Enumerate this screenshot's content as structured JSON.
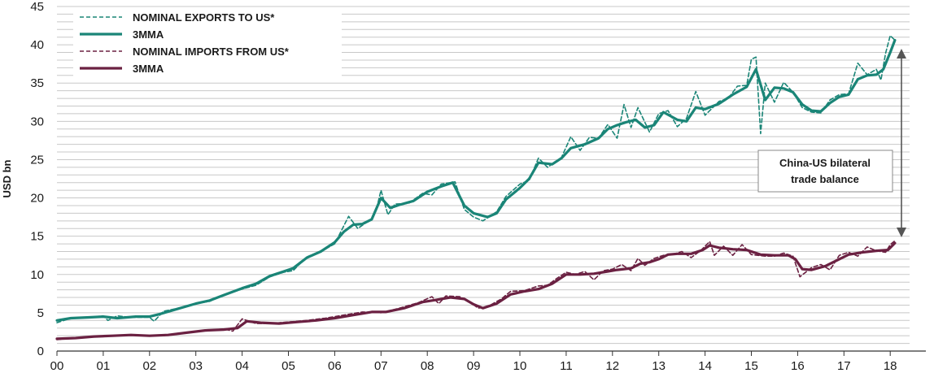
{
  "chart_data": {
    "type": "line",
    "title": "",
    "xlabel": "",
    "ylabel": "USD bn",
    "ylim": [
      0,
      45
    ],
    "xlim": [
      2000,
      2019
    ],
    "yticks": [
      "0",
      "5",
      "10",
      "15",
      "20",
      "25",
      "30",
      "35",
      "40",
      "45"
    ],
    "xticks": [
      "00",
      "01",
      "02",
      "03",
      "04",
      "05",
      "06",
      "07",
      "08",
      "09",
      "10",
      "11",
      "12",
      "13",
      "14",
      "15",
      "16",
      "17",
      "18"
    ],
    "grid": true,
    "legend_position": "top-left",
    "colors": {
      "exports": "#1a8577",
      "imports": "#6b2142",
      "grid": "#c8c8c8",
      "arrow": "#555555"
    },
    "series": [
      {
        "name": "NOMINAL EXPORTS TO US*",
        "style": "dashed",
        "color": "#1a8577",
        "points": [
          [
            2000.0,
            3.7
          ],
          [
            2000.3,
            4.3
          ],
          [
            2000.7,
            4.4
          ],
          [
            2001.0,
            4.6
          ],
          [
            2001.1,
            4.0
          ],
          [
            2001.3,
            4.6
          ],
          [
            2001.6,
            4.4
          ],
          [
            2002.0,
            4.4
          ],
          [
            2002.1,
            3.9
          ],
          [
            2002.3,
            5.2
          ],
          [
            2002.7,
            5.7
          ],
          [
            2003.0,
            6.2
          ],
          [
            2003.3,
            6.5
          ],
          [
            2003.6,
            7.3
          ],
          [
            2004.0,
            8.1
          ],
          [
            2004.3,
            8.6
          ],
          [
            2004.6,
            9.7
          ],
          [
            2004.9,
            10.3
          ],
          [
            2005.1,
            10.5
          ],
          [
            2005.4,
            12.3
          ],
          [
            2005.7,
            13.0
          ],
          [
            2006.0,
            14.0
          ],
          [
            2006.1,
            15.2
          ],
          [
            2006.3,
            17.6
          ],
          [
            2006.5,
            16.0
          ],
          [
            2006.8,
            17.3
          ],
          [
            2006.9,
            18.5
          ],
          [
            2007.0,
            21.0
          ],
          [
            2007.15,
            17.8
          ],
          [
            2007.3,
            19.2
          ],
          [
            2007.6,
            19.3
          ],
          [
            2007.9,
            20.6
          ],
          [
            2008.1,
            20.4
          ],
          [
            2008.3,
            21.8
          ],
          [
            2008.6,
            22.1
          ],
          [
            2008.8,
            18.5
          ],
          [
            2009.0,
            17.5
          ],
          [
            2009.2,
            17.0
          ],
          [
            2009.5,
            18.2
          ],
          [
            2009.7,
            20.2
          ],
          [
            2010.0,
            21.8
          ],
          [
            2010.2,
            22.3
          ],
          [
            2010.4,
            25.2
          ],
          [
            2010.6,
            24.0
          ],
          [
            2010.9,
            25.3
          ],
          [
            2011.1,
            28.0
          ],
          [
            2011.3,
            26.2
          ],
          [
            2011.5,
            27.9
          ],
          [
            2011.7,
            27.8
          ],
          [
            2011.9,
            29.6
          ],
          [
            2012.1,
            27.8
          ],
          [
            2012.25,
            32.2
          ],
          [
            2012.4,
            29.2
          ],
          [
            2012.55,
            31.8
          ],
          [
            2012.8,
            28.6
          ],
          [
            2013.0,
            31.0
          ],
          [
            2013.2,
            31.4
          ],
          [
            2013.4,
            29.3
          ],
          [
            2013.6,
            30.4
          ],
          [
            2013.8,
            33.9
          ],
          [
            2014.0,
            30.8
          ],
          [
            2014.3,
            32.6
          ],
          [
            2014.5,
            33.0
          ],
          [
            2014.7,
            34.6
          ],
          [
            2014.9,
            34.7
          ],
          [
            2015.0,
            38.1
          ],
          [
            2015.1,
            38.4
          ],
          [
            2015.2,
            28.4
          ],
          [
            2015.3,
            35.0
          ],
          [
            2015.5,
            32.5
          ],
          [
            2015.7,
            35.1
          ],
          [
            2015.9,
            33.8
          ],
          [
            2016.1,
            31.8
          ],
          [
            2016.3,
            31.2
          ],
          [
            2016.5,
            31.1
          ],
          [
            2016.7,
            32.8
          ],
          [
            2016.9,
            33.5
          ],
          [
            2017.1,
            33.6
          ],
          [
            2017.3,
            37.6
          ],
          [
            2017.5,
            36.1
          ],
          [
            2017.7,
            36.8
          ],
          [
            2017.8,
            35.4
          ],
          [
            2017.9,
            38.9
          ],
          [
            2018.0,
            41.2
          ],
          [
            2018.1,
            40.6
          ]
        ]
      },
      {
        "name": "3MMA",
        "style": "solid",
        "color": "#1a8577",
        "points": [
          [
            2000.0,
            4.0
          ],
          [
            2000.3,
            4.3
          ],
          [
            2000.7,
            4.4
          ],
          [
            2001.0,
            4.5
          ],
          [
            2001.3,
            4.3
          ],
          [
            2001.7,
            4.5
          ],
          [
            2002.0,
            4.5
          ],
          [
            2002.2,
            4.8
          ],
          [
            2002.6,
            5.5
          ],
          [
            2003.0,
            6.2
          ],
          [
            2003.3,
            6.6
          ],
          [
            2003.6,
            7.3
          ],
          [
            2004.0,
            8.2
          ],
          [
            2004.3,
            8.8
          ],
          [
            2004.6,
            9.8
          ],
          [
            2004.9,
            10.4
          ],
          [
            2005.1,
            10.8
          ],
          [
            2005.4,
            12.2
          ],
          [
            2005.7,
            13.0
          ],
          [
            2006.0,
            14.2
          ],
          [
            2006.2,
            15.6
          ],
          [
            2006.4,
            16.5
          ],
          [
            2006.6,
            16.6
          ],
          [
            2006.8,
            17.2
          ],
          [
            2007.0,
            20.0
          ],
          [
            2007.2,
            18.7
          ],
          [
            2007.4,
            19.1
          ],
          [
            2007.7,
            19.6
          ],
          [
            2008.0,
            20.8
          ],
          [
            2008.3,
            21.5
          ],
          [
            2008.55,
            22.0
          ],
          [
            2008.8,
            19.0
          ],
          [
            2009.0,
            18.0
          ],
          [
            2009.3,
            17.5
          ],
          [
            2009.5,
            18.0
          ],
          [
            2009.7,
            19.8
          ],
          [
            2010.0,
            21.3
          ],
          [
            2010.2,
            22.5
          ],
          [
            2010.4,
            24.6
          ],
          [
            2010.7,
            24.4
          ],
          [
            2010.9,
            25.2
          ],
          [
            2011.1,
            26.5
          ],
          [
            2011.4,
            27.0
          ],
          [
            2011.7,
            27.8
          ],
          [
            2011.9,
            29.0
          ],
          [
            2012.1,
            29.5
          ],
          [
            2012.3,
            29.9
          ],
          [
            2012.5,
            30.2
          ],
          [
            2012.7,
            29.2
          ],
          [
            2012.9,
            29.5
          ],
          [
            2013.1,
            31.2
          ],
          [
            2013.4,
            30.2
          ],
          [
            2013.6,
            30.0
          ],
          [
            2013.8,
            31.8
          ],
          [
            2014.0,
            31.6
          ],
          [
            2014.3,
            32.3
          ],
          [
            2014.6,
            33.5
          ],
          [
            2014.9,
            34.5
          ],
          [
            2015.1,
            36.8
          ],
          [
            2015.3,
            32.8
          ],
          [
            2015.5,
            34.4
          ],
          [
            2015.7,
            34.3
          ],
          [
            2015.9,
            33.8
          ],
          [
            2016.1,
            32.2
          ],
          [
            2016.3,
            31.4
          ],
          [
            2016.5,
            31.3
          ],
          [
            2016.7,
            32.4
          ],
          [
            2016.9,
            33.2
          ],
          [
            2017.1,
            33.5
          ],
          [
            2017.3,
            35.5
          ],
          [
            2017.5,
            36.0
          ],
          [
            2017.7,
            36.1
          ],
          [
            2017.85,
            36.8
          ],
          [
            2018.0,
            39.0
          ],
          [
            2018.1,
            40.6
          ]
        ]
      },
      {
        "name": "NOMINAL IMPORTS FROM US*",
        "style": "dashed",
        "color": "#6b2142",
        "points": [
          [
            2000.0,
            1.5
          ],
          [
            2000.4,
            1.7
          ],
          [
            2000.8,
            1.9
          ],
          [
            2001.2,
            2.0
          ],
          [
            2001.6,
            2.1
          ],
          [
            2001.9,
            2.0
          ],
          [
            2002.3,
            2.0
          ],
          [
            2002.6,
            2.3
          ],
          [
            2003.0,
            2.6
          ],
          [
            2003.3,
            2.7
          ],
          [
            2003.6,
            2.9
          ],
          [
            2003.8,
            2.6
          ],
          [
            2004.0,
            4.2
          ],
          [
            2004.3,
            3.6
          ],
          [
            2004.6,
            3.6
          ],
          [
            2005.0,
            3.8
          ],
          [
            2005.4,
            4.0
          ],
          [
            2005.8,
            4.3
          ],
          [
            2006.2,
            4.7
          ],
          [
            2006.6,
            5.1
          ],
          [
            2007.0,
            5.0
          ],
          [
            2007.4,
            5.6
          ],
          [
            2007.8,
            6.3
          ],
          [
            2008.1,
            7.1
          ],
          [
            2008.25,
            6.2
          ],
          [
            2008.4,
            7.2
          ],
          [
            2008.7,
            7.1
          ],
          [
            2008.9,
            6.5
          ],
          [
            2009.1,
            5.6
          ],
          [
            2009.3,
            5.8
          ],
          [
            2009.6,
            6.8
          ],
          [
            2009.8,
            7.8
          ],
          [
            2010.1,
            7.9
          ],
          [
            2010.4,
            8.5
          ],
          [
            2010.6,
            8.6
          ],
          [
            2010.8,
            9.5
          ],
          [
            2011.0,
            10.3
          ],
          [
            2011.2,
            10.0
          ],
          [
            2011.4,
            10.4
          ],
          [
            2011.6,
            9.3
          ],
          [
            2011.8,
            10.5
          ],
          [
            2012.0,
            10.7
          ],
          [
            2012.2,
            11.3
          ],
          [
            2012.4,
            10.5
          ],
          [
            2012.55,
            12.1
          ],
          [
            2012.7,
            11.2
          ],
          [
            2012.9,
            12.1
          ],
          [
            2013.1,
            12.5
          ],
          [
            2013.3,
            12.6
          ],
          [
            2013.5,
            13.0
          ],
          [
            2013.7,
            12.2
          ],
          [
            2013.9,
            13.1
          ],
          [
            2014.1,
            14.3
          ],
          [
            2014.2,
            12.5
          ],
          [
            2014.4,
            13.7
          ],
          [
            2014.6,
            12.5
          ],
          [
            2014.8,
            13.9
          ],
          [
            2015.0,
            12.6
          ],
          [
            2015.3,
            12.4
          ],
          [
            2015.5,
            12.4
          ],
          [
            2015.7,
            12.8
          ],
          [
            2015.9,
            12.4
          ],
          [
            2016.05,
            9.7
          ],
          [
            2016.3,
            10.9
          ],
          [
            2016.5,
            11.3
          ],
          [
            2016.7,
            10.6
          ],
          [
            2016.9,
            12.5
          ],
          [
            2017.1,
            12.9
          ],
          [
            2017.3,
            12.4
          ],
          [
            2017.5,
            13.6
          ],
          [
            2017.7,
            13.1
          ],
          [
            2017.9,
            12.9
          ],
          [
            2018.0,
            13.9
          ],
          [
            2018.1,
            14.4
          ]
        ]
      },
      {
        "name": "3MMA",
        "style": "solid",
        "color": "#6b2142",
        "points": [
          [
            2000.0,
            1.6
          ],
          [
            2000.4,
            1.7
          ],
          [
            2000.8,
            1.9
          ],
          [
            2001.2,
            2.0
          ],
          [
            2001.6,
            2.1
          ],
          [
            2002.0,
            2.0
          ],
          [
            2002.4,
            2.1
          ],
          [
            2002.8,
            2.4
          ],
          [
            2003.2,
            2.7
          ],
          [
            2003.6,
            2.8
          ],
          [
            2003.9,
            3.0
          ],
          [
            2004.1,
            3.9
          ],
          [
            2004.4,
            3.7
          ],
          [
            2004.8,
            3.6
          ],
          [
            2005.2,
            3.8
          ],
          [
            2005.6,
            4.0
          ],
          [
            2006.0,
            4.3
          ],
          [
            2006.4,
            4.7
          ],
          [
            2006.8,
            5.1
          ],
          [
            2007.1,
            5.1
          ],
          [
            2007.5,
            5.6
          ],
          [
            2007.9,
            6.4
          ],
          [
            2008.2,
            6.7
          ],
          [
            2008.5,
            7.0
          ],
          [
            2008.8,
            6.8
          ],
          [
            2009.0,
            6.1
          ],
          [
            2009.2,
            5.6
          ],
          [
            2009.5,
            6.2
          ],
          [
            2009.8,
            7.4
          ],
          [
            2010.1,
            7.8
          ],
          [
            2010.4,
            8.1
          ],
          [
            2010.7,
            8.8
          ],
          [
            2011.0,
            10.0
          ],
          [
            2011.3,
            10.0
          ],
          [
            2011.6,
            10.1
          ],
          [
            2011.9,
            10.4
          ],
          [
            2012.1,
            10.6
          ],
          [
            2012.4,
            10.8
          ],
          [
            2012.6,
            11.4
          ],
          [
            2012.8,
            11.6
          ],
          [
            2013.0,
            12.0
          ],
          [
            2013.2,
            12.6
          ],
          [
            2013.4,
            12.7
          ],
          [
            2013.7,
            12.7
          ],
          [
            2013.95,
            13.2
          ],
          [
            2014.1,
            13.8
          ],
          [
            2014.3,
            13.5
          ],
          [
            2014.6,
            13.3
          ],
          [
            2014.9,
            13.2
          ],
          [
            2015.2,
            12.6
          ],
          [
            2015.5,
            12.5
          ],
          [
            2015.8,
            12.5
          ],
          [
            2015.95,
            12.0
          ],
          [
            2016.1,
            10.7
          ],
          [
            2016.3,
            10.6
          ],
          [
            2016.6,
            11.1
          ],
          [
            2016.9,
            12.0
          ],
          [
            2017.1,
            12.6
          ],
          [
            2017.4,
            12.9
          ],
          [
            2017.7,
            13.1
          ],
          [
            2017.95,
            13.2
          ],
          [
            2018.1,
            14.1
          ]
        ]
      }
    ],
    "annotations": [
      {
        "lines": [
          "China-US bilateral",
          "trade balance"
        ]
      }
    ]
  }
}
